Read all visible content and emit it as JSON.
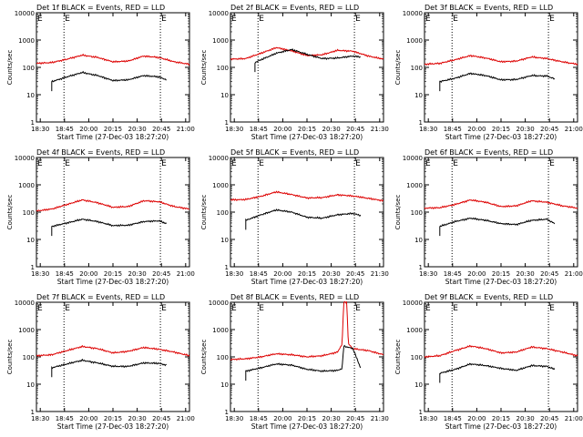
{
  "start_time_label": "Start Time (27-Dec-03 18:27:20)",
  "ylabel": "Counts/sec",
  "yscale": "log",
  "ylim": [
    1,
    10000
  ],
  "y_ticks": [
    {
      "value": 1,
      "label": "1"
    },
    {
      "value": 10,
      "label": "10"
    },
    {
      "value": 100,
      "label": "100"
    },
    {
      "value": 1000,
      "label": "1000"
    },
    {
      "value": 10000,
      "label": "10000"
    }
  ],
  "x_ticks_by_column": [
    [
      "18:30",
      "18:45",
      "20:00",
      "20:15",
      "20:30",
      "20:45",
      "21:00"
    ],
    [
      "18:30",
      "18:45",
      "20:00",
      "20:15",
      "20:30",
      "20:45",
      "21:30"
    ],
    [
      "18:30",
      "18:45",
      "20:00",
      "20:15",
      "20:30",
      "20:45",
      "21:00"
    ]
  ],
  "marker_labels": [
    "E",
    "E"
  ],
  "colors": {
    "events": "#000000",
    "lld": "#dd0000",
    "axis": "#000000"
  },
  "chart_data": [
    {
      "type": "line",
      "title": "Det 1f BLACK = Events, RED = LLD",
      "xlabel": "Start Time (27-Dec-03 18:27:20)",
      "ylabel": "Counts/sec",
      "x": [
        0,
        0.1,
        0.2,
        0.3,
        0.4,
        0.5,
        0.6,
        0.7,
        0.8,
        0.9,
        1.0
      ],
      "series": [
        {
          "name": "LLD",
          "color": "#dd0000",
          "x": [
            0,
            0.1,
            0.2,
            0.3,
            0.4,
            0.5,
            0.6,
            0.7,
            0.8,
            0.9,
            1.0
          ],
          "values": [
            140,
            150,
            200,
            280,
            230,
            160,
            170,
            260,
            230,
            160,
            130
          ]
        },
        {
          "name": "Events",
          "color": "#000000",
          "x": [
            0.1,
            0.2,
            0.3,
            0.4,
            0.5,
            0.6,
            0.7,
            0.8,
            0.85
          ],
          "values": [
            30,
            45,
            65,
            50,
            33,
            35,
            50,
            45,
            35
          ]
        }
      ]
    },
    {
      "type": "line",
      "title": "Det 2f BLACK = Events, RED = LLD",
      "xlabel": "Start Time (27-Dec-03 18:27:20)",
      "ylabel": "Counts/sec",
      "x": [
        0,
        0.1,
        0.2,
        0.3,
        0.4,
        0.5,
        0.6,
        0.7,
        0.8,
        0.9,
        1.0
      ],
      "series": [
        {
          "name": "LLD",
          "color": "#dd0000",
          "x": [
            0,
            0.1,
            0.2,
            0.3,
            0.4,
            0.5,
            0.6,
            0.7,
            0.8,
            0.9,
            1.0
          ],
          "values": [
            200,
            210,
            330,
            530,
            400,
            270,
            290,
            420,
            390,
            260,
            200
          ]
        },
        {
          "name": "Events",
          "color": "#000000",
          "x": [
            0.16,
            0.2,
            0.3,
            0.4,
            0.5,
            0.6,
            0.7,
            0.8,
            0.85
          ],
          "values": [
            150,
            190,
            330,
            450,
            300,
            210,
            220,
            260,
            240
          ]
        }
      ]
    },
    {
      "type": "line",
      "title": "Det 3f BLACK = Events, RED = LLD",
      "xlabel": "Start Time (27-Dec-03 18:27:20)",
      "ylabel": "Counts/sec",
      "x": [
        0,
        0.1,
        0.2,
        0.3,
        0.4,
        0.5,
        0.6,
        0.7,
        0.8,
        0.9,
        1.0
      ],
      "series": [
        {
          "name": "LLD",
          "color": "#dd0000",
          "x": [
            0,
            0.1,
            0.2,
            0.3,
            0.4,
            0.5,
            0.6,
            0.7,
            0.8,
            0.9,
            1.0
          ],
          "values": [
            130,
            140,
            190,
            270,
            220,
            160,
            170,
            240,
            210,
            160,
            130
          ]
        },
        {
          "name": "Events",
          "color": "#000000",
          "x": [
            0.1,
            0.2,
            0.3,
            0.4,
            0.5,
            0.6,
            0.7,
            0.8,
            0.85
          ],
          "values": [
            30,
            40,
            60,
            50,
            35,
            36,
            50,
            48,
            38
          ]
        }
      ]
    },
    {
      "type": "line",
      "title": "Det 4f BLACK = Events, RED = LLD",
      "xlabel": "Start Time (27-Dec-03 18:27:20)",
      "ylabel": "Counts/sec",
      "x": [
        0,
        0.1,
        0.2,
        0.3,
        0.4,
        0.5,
        0.6,
        0.7,
        0.8,
        0.9,
        1.0
      ],
      "series": [
        {
          "name": "LLD",
          "color": "#dd0000",
          "x": [
            0,
            0.1,
            0.2,
            0.3,
            0.4,
            0.5,
            0.6,
            0.7,
            0.8,
            0.9,
            1.0
          ],
          "values": [
            110,
            130,
            190,
            280,
            220,
            150,
            160,
            260,
            240,
            160,
            130
          ]
        },
        {
          "name": "Events",
          "color": "#000000",
          "x": [
            0.1,
            0.2,
            0.3,
            0.4,
            0.5,
            0.6,
            0.7,
            0.8,
            0.85
          ],
          "values": [
            30,
            40,
            55,
            45,
            32,
            33,
            45,
            48,
            38
          ]
        }
      ]
    },
    {
      "type": "line",
      "title": "Det 5f BLACK = Events, RED = LLD",
      "xlabel": "Start Time (27-Dec-03 18:27:20)",
      "ylabel": "Counts/sec",
      "x": [
        0,
        0.1,
        0.2,
        0.3,
        0.4,
        0.5,
        0.6,
        0.7,
        0.8,
        0.9,
        1.0
      ],
      "series": [
        {
          "name": "LLD",
          "color": "#dd0000",
          "x": [
            0,
            0.1,
            0.2,
            0.3,
            0.4,
            0.5,
            0.6,
            0.7,
            0.8,
            0.9,
            1.0
          ],
          "values": [
            280,
            290,
            380,
            550,
            440,
            330,
            340,
            430,
            390,
            320,
            260
          ]
        },
        {
          "name": "Events",
          "color": "#000000",
          "x": [
            0.1,
            0.2,
            0.3,
            0.4,
            0.5,
            0.6,
            0.7,
            0.8,
            0.85
          ],
          "values": [
            50,
            80,
            120,
            100,
            65,
            60,
            80,
            90,
            75
          ]
        }
      ]
    },
    {
      "type": "line",
      "title": "Det 6f BLACK = Events, RED = LLD",
      "xlabel": "Start Time (27-Dec-03 18:27:20)",
      "ylabel": "Counts/sec",
      "x": [
        0,
        0.1,
        0.2,
        0.3,
        0.4,
        0.5,
        0.6,
        0.7,
        0.8,
        0.9,
        1.0
      ],
      "series": [
        {
          "name": "LLD",
          "color": "#dd0000",
          "x": [
            0,
            0.1,
            0.2,
            0.3,
            0.4,
            0.5,
            0.6,
            0.7,
            0.8,
            0.9,
            1.0
          ],
          "values": [
            140,
            145,
            190,
            280,
            230,
            160,
            170,
            260,
            230,
            170,
            140
          ]
        },
        {
          "name": "Events",
          "color": "#000000",
          "x": [
            0.1,
            0.2,
            0.3,
            0.4,
            0.5,
            0.6,
            0.7,
            0.8,
            0.85
          ],
          "values": [
            30,
            45,
            60,
            50,
            38,
            35,
            50,
            55,
            38
          ]
        }
      ]
    },
    {
      "type": "line",
      "title": "Det 7f BLACK = Events, RED = LLD",
      "xlabel": "Start Time (27-Dec-03 18:27:20)",
      "ylabel": "Counts/sec",
      "x": [
        0,
        0.1,
        0.2,
        0.3,
        0.4,
        0.5,
        0.6,
        0.7,
        0.8,
        0.9,
        1.0
      ],
      "series": [
        {
          "name": "LLD",
          "color": "#dd0000",
          "x": [
            0,
            0.1,
            0.2,
            0.3,
            0.4,
            0.5,
            0.6,
            0.7,
            0.8,
            0.9,
            1.0
          ],
          "values": [
            110,
            120,
            170,
            240,
            200,
            140,
            160,
            220,
            190,
            150,
            110
          ]
        },
        {
          "name": "Events",
          "color": "#000000",
          "x": [
            0.1,
            0.2,
            0.3,
            0.4,
            0.5,
            0.6,
            0.7,
            0.8,
            0.85
          ],
          "values": [
            40,
            55,
            75,
            60,
            45,
            45,
            60,
            58,
            50
          ]
        }
      ]
    },
    {
      "type": "line",
      "title": "Det 8f BLACK = Events, RED = LLD",
      "xlabel": "Start Time (27-Dec-03 18:27:20)",
      "ylabel": "Counts/sec",
      "x": [
        0,
        0.1,
        0.2,
        0.3,
        0.4,
        0.5,
        0.6,
        0.7,
        0.75,
        0.76,
        0.8,
        0.9,
        1.0
      ],
      "series": [
        {
          "name": "LLD",
          "color": "#dd0000",
          "x": [
            0,
            0.1,
            0.2,
            0.3,
            0.4,
            0.5,
            0.6,
            0.7,
            0.73,
            0.74,
            0.76,
            0.77,
            0.8,
            0.9,
            1.0
          ],
          "values": [
            80,
            85,
            100,
            130,
            120,
            100,
            110,
            150,
            300,
            10000,
            10000,
            300,
            200,
            170,
            120
          ]
        },
        {
          "name": "Events",
          "color": "#000000",
          "x": [
            0.1,
            0.2,
            0.3,
            0.4,
            0.5,
            0.6,
            0.7,
            0.73,
            0.74,
            0.8,
            0.85
          ],
          "values": [
            30,
            40,
            55,
            50,
            35,
            30,
            32,
            38,
            250,
            200,
            40
          ]
        }
      ]
    },
    {
      "type": "line",
      "title": "Det 9f BLACK = Events, RED = LLD",
      "xlabel": "Start Time (27-Dec-03 18:27:20)",
      "ylabel": "Counts/sec",
      "x": [
        0,
        0.1,
        0.2,
        0.3,
        0.4,
        0.5,
        0.6,
        0.7,
        0.8,
        0.9,
        1.0
      ],
      "series": [
        {
          "name": "LLD",
          "color": "#dd0000",
          "x": [
            0,
            0.1,
            0.2,
            0.3,
            0.4,
            0.5,
            0.6,
            0.7,
            0.8,
            0.9,
            1.0
          ],
          "values": [
            100,
            110,
            170,
            250,
            200,
            140,
            150,
            230,
            200,
            150,
            110
          ]
        },
        {
          "name": "Events",
          "color": "#000000",
          "x": [
            0.1,
            0.2,
            0.3,
            0.4,
            0.5,
            0.6,
            0.7,
            0.8,
            0.85
          ],
          "values": [
            25,
            35,
            55,
            48,
            38,
            32,
            48,
            45,
            35
          ]
        }
      ]
    }
  ]
}
